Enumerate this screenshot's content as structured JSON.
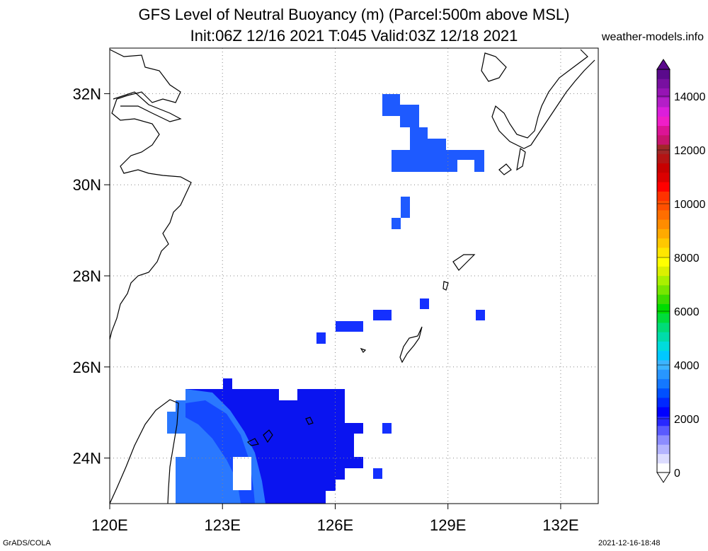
{
  "title": {
    "line1": "GFS Level of Neutral Buoyancy (m) (Parcel:500m above MSL)",
    "line2": "Init:06Z 12/16 2021 T:045 Valid:03Z 12/18 2021"
  },
  "credit": "weather-models.info",
  "footer": {
    "left": "GrADS/COLA",
    "right": "2021-12-16-18:48"
  },
  "map": {
    "lon_range": [
      120,
      133
    ],
    "lat_range": [
      23,
      33
    ],
    "x_ticks": [
      {
        "value": 120,
        "label": "120E"
      },
      {
        "value": 123,
        "label": "123E"
      },
      {
        "value": 126,
        "label": "126E"
      },
      {
        "value": 129,
        "label": "129E"
      },
      {
        "value": 132,
        "label": "132E"
      }
    ],
    "y_ticks": [
      {
        "value": 24,
        "label": "24N"
      },
      {
        "value": 26,
        "label": "26N"
      },
      {
        "value": 28,
        "label": "28N"
      },
      {
        "value": 30,
        "label": "30N"
      },
      {
        "value": 32,
        "label": "32N"
      }
    ],
    "grid": true
  },
  "colorbar": {
    "labels": [
      {
        "value": 0,
        "label": "0"
      },
      {
        "value": 2000,
        "label": "2000"
      },
      {
        "value": 4000,
        "label": "4000"
      },
      {
        "value": 6000,
        "label": "6000"
      },
      {
        "value": 8000,
        "label": "8000"
      },
      {
        "value": 10000,
        "label": "10000"
      },
      {
        "value": 12000,
        "label": "12000"
      },
      {
        "value": 14000,
        "label": "14000"
      }
    ],
    "colors": [
      "#ffffff",
      "#dcdcff",
      "#b4b4ff",
      "#8c8cff",
      "#5a5aff",
      "#2828ff",
      "#0000ff",
      "#0028ff",
      "#0050ff",
      "#1478ff",
      "#2896ff",
      "#3cb4ff",
      "#00c8ff",
      "#00dcdc",
      "#00dcaa",
      "#00dc78",
      "#00dc3c",
      "#00dc00",
      "#3cdc00",
      "#78e600",
      "#aaf000",
      "#dcf000",
      "#ffff00",
      "#ffe600",
      "#ffc800",
      "#ffaa00",
      "#ff8c00",
      "#ff6e00",
      "#ff5000",
      "#ff3200",
      "#ff0000",
      "#dc0000",
      "#c80000",
      "#b41414",
      "#a02828",
      "#c8146e",
      "#dc1496",
      "#f01ec8",
      "#dc1edc",
      "#b41ec8",
      "#9614b4",
      "#7810a0",
      "#5a0a8c"
    ]
  },
  "chart_data": {
    "type": "heatmap",
    "grid_spacing_deg": 0.5,
    "value_units": "m",
    "cells": [
      {
        "lon": 127.5,
        "lat": 31.5,
        "value": 1400
      },
      {
        "lon": 127.5,
        "lat": 32.0,
        "value": 1400
      },
      {
        "lon": 128.0,
        "lat": 31.5,
        "value": 1500
      },
      {
        "lon": 128.0,
        "lat": 31.0,
        "value": 1500
      },
      {
        "lon": 128.0,
        "lat": 30.5,
        "value": 1500
      },
      {
        "lon": 127.5,
        "lat": 30.5,
        "value": 1600
      },
      {
        "lon": 128.5,
        "lat": 31.0,
        "value": 1500
      },
      {
        "lon": 128.5,
        "lat": 30.5,
        "value": 1500
      },
      {
        "lon": 129.0,
        "lat": 30.5,
        "value": 1600
      },
      {
        "lon": 129.5,
        "lat": 30.5,
        "value": 1500
      },
      {
        "lon": 130.0,
        "lat": 30.5,
        "value": 1500
      },
      {
        "lon": 127.8,
        "lat": 29.5,
        "value": 1400
      },
      {
        "lon": 127.6,
        "lat": 29.2,
        "value": 1300
      },
      {
        "lon": 128.4,
        "lat": 27.3,
        "value": 1100
      },
      {
        "lon": 130.0,
        "lat": 27.1,
        "value": 1100
      },
      {
        "lon": 127.2,
        "lat": 27.1,
        "value": 1100
      },
      {
        "lon": 126.0,
        "lat": 26.9,
        "value": 1100
      },
      {
        "lon": 125.5,
        "lat": 26.6,
        "value": 1200
      },
      {
        "lon": 127.4,
        "lat": 24.7,
        "value": 1200
      },
      {
        "lon": 127.2,
        "lat": 23.6,
        "value": 1100
      },
      {
        "lon": 124.5,
        "lat": 24.5,
        "value": 800
      },
      {
        "lon": 122.5,
        "lat": 24.0,
        "value": 2100
      }
    ]
  }
}
